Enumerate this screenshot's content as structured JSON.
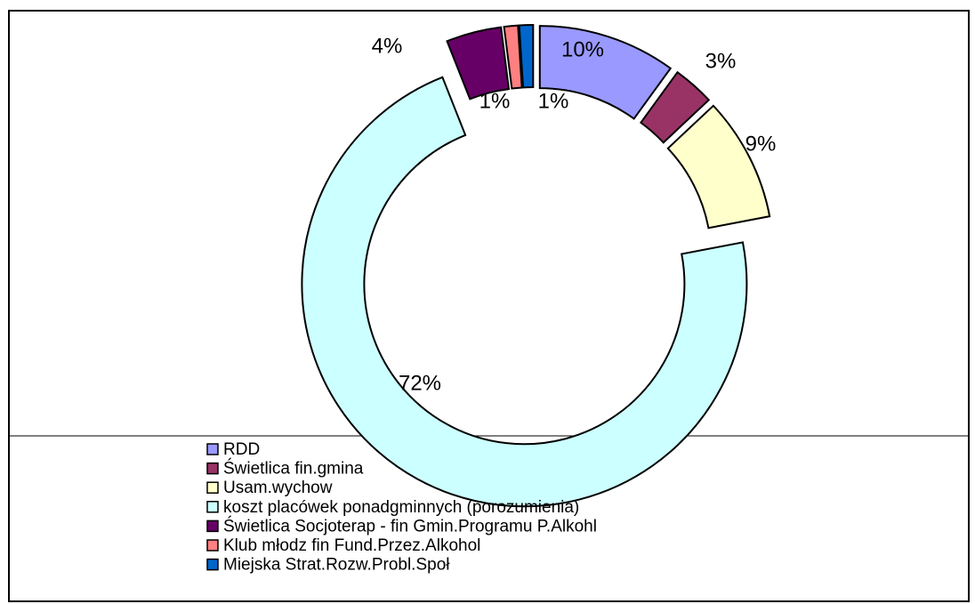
{
  "chart_data": {
    "type": "donut",
    "categories": [
      "RDD",
      "Świetlica fin.gmina",
      "Usam.wychow",
      "koszt placówek ponadgminnych (porozumienia)",
      "Świetlica Socjoterap - fin Gmin.Programu P.Alkohl",
      "Klub młodz fin Fund.Przez.Alkohol",
      "Miejska Strat.Rozw.Probl.Społ"
    ],
    "values": [
      10,
      3,
      9,
      72,
      4,
      1,
      1
    ],
    "value_labels": [
      "10%",
      "3%",
      "9%",
      "72%",
      "4%",
      "1%",
      "1%"
    ],
    "colors": [
      "#9999ff",
      "#993366",
      "#ffffcc",
      "#ccffff",
      "#660066",
      "#ff8080",
      "#0066cc"
    ],
    "legend": "bottom"
  }
}
